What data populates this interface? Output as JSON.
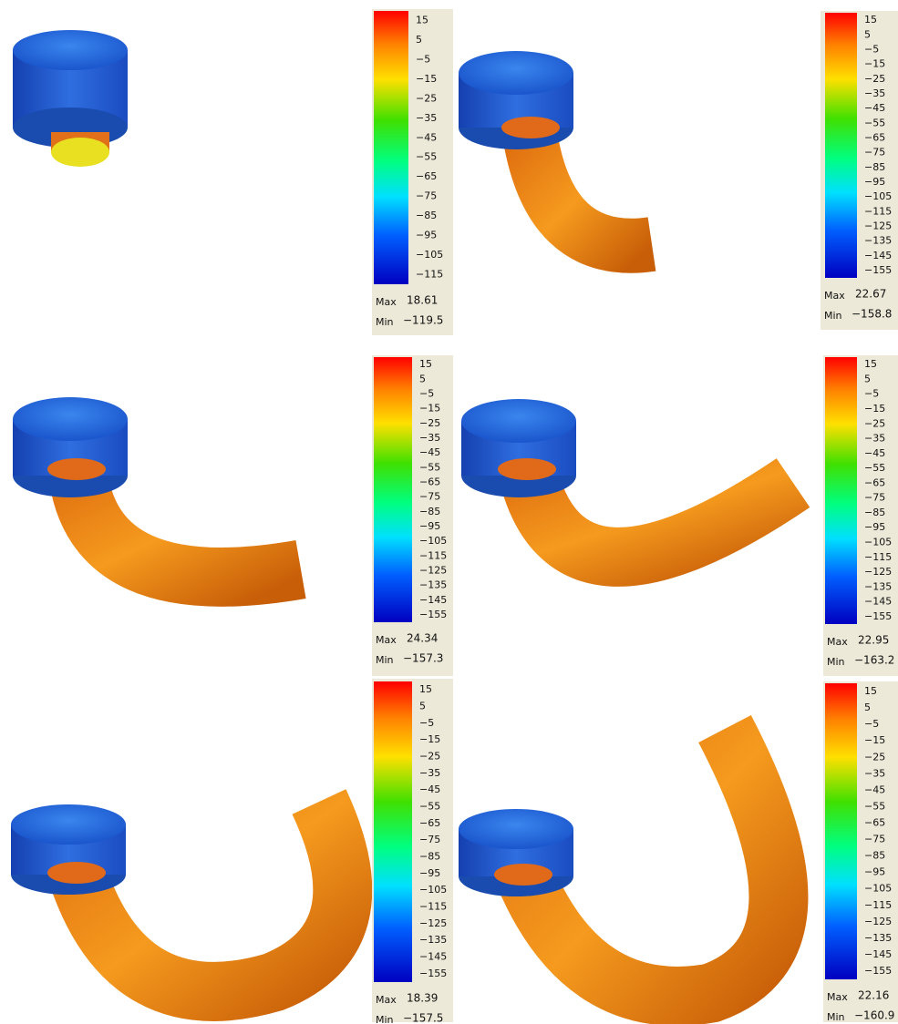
{
  "panels": [
    {
      "legend": [
        "15",
        "5",
        "−5",
        "−15",
        "−25",
        "−35",
        "−45",
        "−55",
        "−65",
        "−75",
        "−85",
        "−95",
        "−105",
        "−115"
      ],
      "max_label": "Max",
      "max": "18.61",
      "min_label": "Min",
      "min": "−119.5"
    },
    {
      "legend": [
        "15",
        "5",
        "−5",
        "−15",
        "−25",
        "−35",
        "−45",
        "−55",
        "−65",
        "−75",
        "−85",
        "−95",
        "−105",
        "−115",
        "−125",
        "−135",
        "−145",
        "−155"
      ],
      "max_label": "Max",
      "max": "22.67",
      "min_label": "Min",
      "min": "−158.8"
    },
    {
      "legend": [
        "15",
        "5",
        "−5",
        "−15",
        "−25",
        "−35",
        "−45",
        "−55",
        "−65",
        "−75",
        "−85",
        "−95",
        "−105",
        "−115",
        "−125",
        "−135",
        "−145",
        "−155"
      ],
      "max_label": "Max",
      "max": "24.34",
      "min_label": "Min",
      "min": "−157.3"
    },
    {
      "legend": [
        "15",
        "5",
        "−5",
        "−15",
        "−25",
        "−35",
        "−45",
        "−55",
        "−65",
        "−75",
        "−85",
        "−95",
        "−105",
        "−115",
        "−125",
        "−135",
        "−145",
        "−155"
      ],
      "max_label": "Max",
      "max": "22.95",
      "min_label": "Min",
      "min": "−163.2"
    },
    {
      "legend": [
        "15",
        "5",
        "−5",
        "−15",
        "−25",
        "−35",
        "−45",
        "−55",
        "−65",
        "−75",
        "−85",
        "−95",
        "−105",
        "−115",
        "−125",
        "−135",
        "−145",
        "−155"
      ],
      "max_label": "Max",
      "max": "18.39",
      "min_label": "Min",
      "min": "−157.5"
    },
    {
      "legend": [
        "15",
        "5",
        "−5",
        "−15",
        "−25",
        "−35",
        "−45",
        "−55",
        "−65",
        "−75",
        "−85",
        "−95",
        "−105",
        "−115",
        "−125",
        "−135",
        "−145",
        "−155"
      ],
      "max_label": "Max",
      "max": "22.16",
      "min_label": "Min",
      "min": "−160.9"
    }
  ]
}
